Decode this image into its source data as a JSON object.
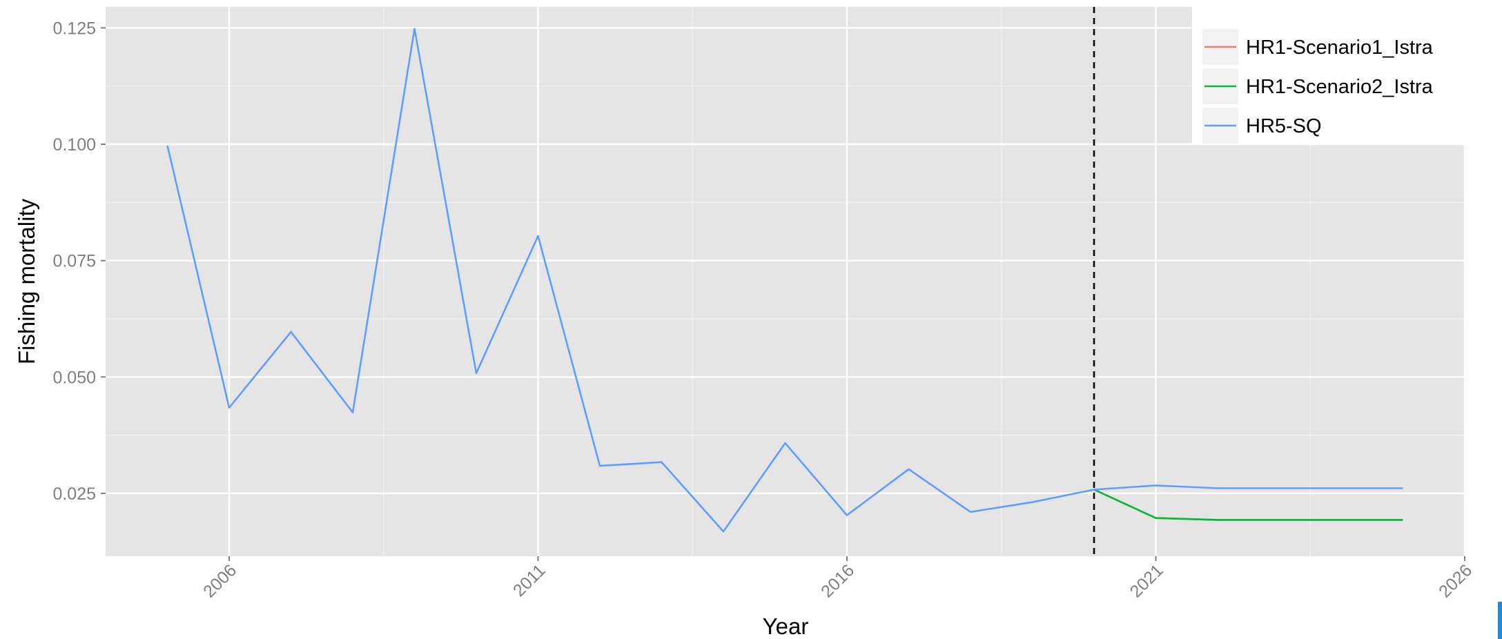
{
  "chart_data": {
    "type": "line",
    "title": "",
    "xlabel": "Year",
    "ylabel": "Fishing mortality",
    "xlim": [
      2004,
      2026
    ],
    "ylim": [
      0.0115,
      0.1295
    ],
    "x_ticks": [
      2006,
      2011,
      2016,
      2021,
      2026
    ],
    "y_ticks": [
      0.025,
      0.05,
      0.075,
      0.1,
      0.125
    ],
    "y_tick_labels": [
      "0.025",
      "0.050",
      "0.075",
      "0.100",
      "0.125"
    ],
    "grid": true,
    "legend_position": "top-right",
    "reference_line": {
      "x": 2020,
      "style": "dashed",
      "color": "#000000"
    },
    "series": [
      {
        "name": "HR1-Scenario1_Istra",
        "color": "#f8766d",
        "x": [
          2020,
          2021,
          2022,
          2023,
          2024,
          2025
        ],
        "y": [
          0.0258,
          0.0197,
          0.0193,
          0.0193,
          0.0193,
          0.0193
        ]
      },
      {
        "name": "HR1-Scenario2_Istra",
        "color": "#00ba38",
        "x": [
          2020,
          2021,
          2022,
          2023,
          2024,
          2025
        ],
        "y": [
          0.0258,
          0.0197,
          0.0193,
          0.0193,
          0.0193,
          0.0193
        ]
      },
      {
        "name": "HR5-SQ",
        "color": "#619cff",
        "x": [
          2005,
          2006,
          2007,
          2008,
          2009,
          2010,
          2011,
          2012,
          2013,
          2014,
          2015,
          2016,
          2017,
          2018,
          2019,
          2020,
          2021,
          2022,
          2023,
          2024,
          2025
        ],
        "y": [
          0.0997,
          0.0434,
          0.0597,
          0.0424,
          0.1248,
          0.0508,
          0.0803,
          0.0309,
          0.0317,
          0.0168,
          0.0358,
          0.0203,
          0.0302,
          0.021,
          0.0231,
          0.0258,
          0.0267,
          0.0261,
          0.0261,
          0.0261,
          0.0261
        ]
      }
    ]
  }
}
